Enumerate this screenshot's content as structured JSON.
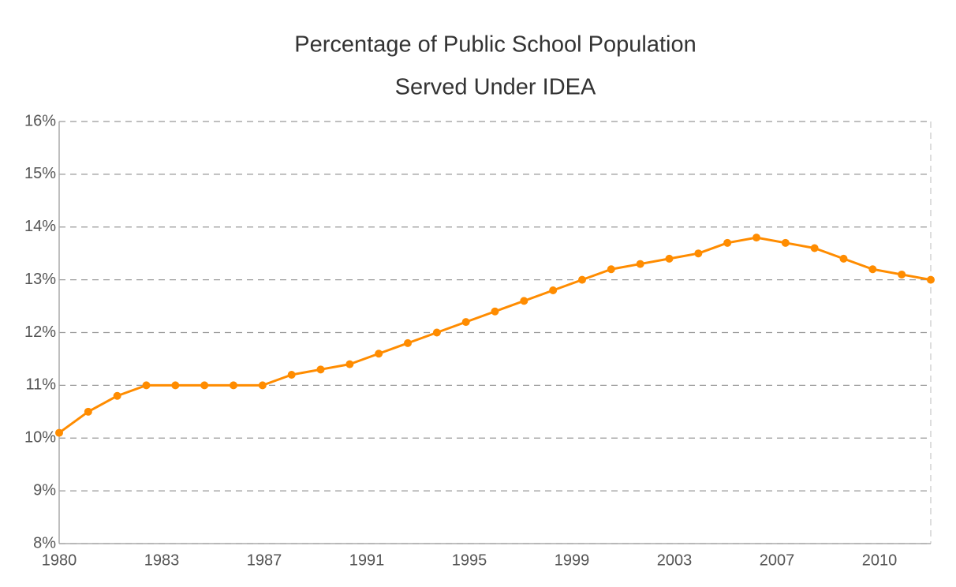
{
  "chart_data": {
    "type": "line",
    "title": [
      "Percentage of Public School Population",
      "Served Under IDEA"
    ],
    "categories": [
      null,
      null,
      null,
      null,
      null,
      null,
      null,
      null,
      null,
      null,
      null,
      null,
      null,
      null,
      null,
      null,
      null,
      null,
      null,
      null,
      null,
      null,
      null,
      null,
      null,
      null,
      null,
      null,
      null,
      null,
      null
    ],
    "xtick_labels": [
      "1980",
      "1983",
      "1987",
      "1991",
      "1995",
      "1999",
      "2003",
      "2007",
      "2010"
    ],
    "series": [
      {
        "color": "#ff8c00",
        "values": [
          10.1,
          10.5,
          10.8,
          11.0,
          11.0,
          11.0,
          11.0,
          11.0,
          11.2,
          11.3,
          11.4,
          11.6,
          11.8,
          12.0,
          12.2,
          12.4,
          12.6,
          12.8,
          13.0,
          13.2,
          13.3,
          13.4,
          13.5,
          13.7,
          13.8,
          13.7,
          13.6,
          13.4,
          13.2,
          13.1,
          13.0
        ]
      }
    ],
    "ylim": [
      8,
      16
    ],
    "yticks": [
      {
        "value": 8,
        "label": "8%"
      },
      {
        "value": 9,
        "label": "9%"
      },
      {
        "value": 10,
        "label": "10%"
      },
      {
        "value": 11,
        "label": "11%"
      },
      {
        "value": 12,
        "label": "12%"
      },
      {
        "value": 13,
        "label": "13%"
      },
      {
        "value": 14,
        "label": "14%"
      },
      {
        "value": 15,
        "label": "15%"
      },
      {
        "value": 16,
        "label": "16%"
      }
    ],
    "grid": true
  }
}
